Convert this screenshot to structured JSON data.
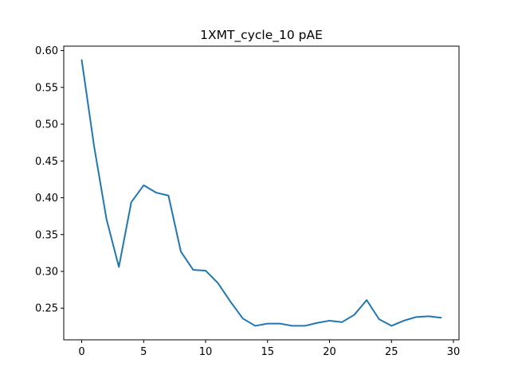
{
  "chart_data": {
    "type": "line",
    "title": "1XMT_cycle_10 pAE",
    "xlabel": "",
    "ylabel": "",
    "xlim": [
      -1.45,
      30.45
    ],
    "ylim": [
      0.207,
      0.606
    ],
    "xticks": [
      0,
      5,
      10,
      15,
      20,
      25,
      30
    ],
    "yticks": [
      0.25,
      0.3,
      0.35,
      0.4,
      0.45,
      0.5,
      0.55,
      0.6
    ],
    "grid": false,
    "series": [
      {
        "color": "#1f77b4",
        "x": [
          0,
          1,
          2,
          3,
          4,
          5,
          6,
          7,
          8,
          9,
          10,
          11,
          12,
          13,
          14,
          15,
          16,
          17,
          18,
          19,
          20,
          21,
          22,
          23,
          24,
          25,
          26,
          27,
          28,
          29
        ],
        "y": [
          0.587,
          0.47,
          0.371,
          0.306,
          0.394,
          0.417,
          0.407,
          0.403,
          0.327,
          0.302,
          0.301,
          0.284,
          0.259,
          0.236,
          0.226,
          0.229,
          0.229,
          0.226,
          0.226,
          0.23,
          0.233,
          0.231,
          0.241,
          0.261,
          0.235,
          0.226,
          0.233,
          0.238,
          0.239,
          0.237
        ]
      }
    ]
  }
}
